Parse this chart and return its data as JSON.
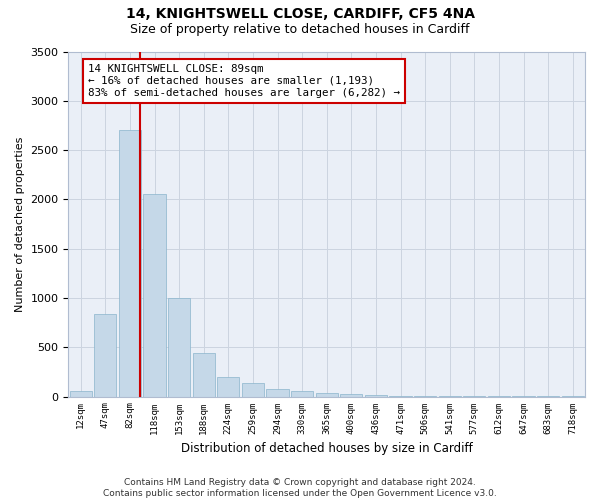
{
  "title1": "14, KNIGHTSWELL CLOSE, CARDIFF, CF5 4NA",
  "title2": "Size of property relative to detached houses in Cardiff",
  "xlabel": "Distribution of detached houses by size in Cardiff",
  "ylabel": "Number of detached properties",
  "categories": [
    "12sqm",
    "47sqm",
    "82sqm",
    "118sqm",
    "153sqm",
    "188sqm",
    "224sqm",
    "259sqm",
    "294sqm",
    "330sqm",
    "365sqm",
    "400sqm",
    "436sqm",
    "471sqm",
    "506sqm",
    "541sqm",
    "577sqm",
    "612sqm",
    "647sqm",
    "683sqm",
    "718sqm"
  ],
  "bar_values": [
    60,
    840,
    2700,
    2050,
    1000,
    440,
    200,
    140,
    75,
    55,
    40,
    30,
    20,
    8,
    5,
    4,
    3,
    2,
    1,
    1,
    1
  ],
  "bar_color": "#c5d8e8",
  "bar_edge_color": "#8ab4cc",
  "vline_x": 2.42,
  "vline_color": "#cc0000",
  "annotation_text": "14 KNIGHTSWELL CLOSE: 89sqm\n← 16% of detached houses are smaller (1,193)\n83% of semi-detached houses are larger (6,282) →",
  "annotation_box_facecolor": "#ffffff",
  "annotation_box_edgecolor": "#cc0000",
  "ylim": [
    0,
    3500
  ],
  "yticks": [
    0,
    500,
    1000,
    1500,
    2000,
    2500,
    3000,
    3500
  ],
  "grid_color": "#ccd4e0",
  "bg_color": "#eaeff7",
  "footer": "Contains HM Land Registry data © Crown copyright and database right 2024.\nContains public sector information licensed under the Open Government Licence v3.0."
}
